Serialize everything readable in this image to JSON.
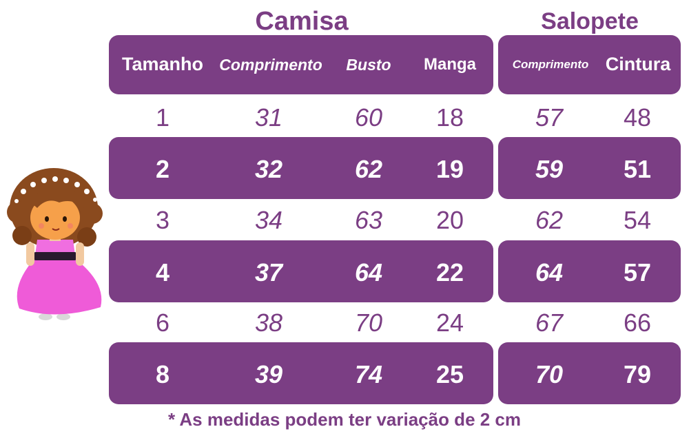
{
  "sections": {
    "camisa_title": "Camisa",
    "salopete_title": "Salopete"
  },
  "headers": {
    "tamanho": "Tamanho",
    "camisa_comprimento": "Comprimento",
    "busto": "Busto",
    "manga": "Manga",
    "salopete_comprimento": "Comprimento",
    "cintura": "Cintura"
  },
  "rows": [
    {
      "tamanho": "1",
      "comprimento": "31",
      "busto": "60",
      "manga": "18",
      "sal_comprimento": "57",
      "cintura": "48"
    },
    {
      "tamanho": "2",
      "comprimento": "32",
      "busto": "62",
      "manga": "19",
      "sal_comprimento": "59",
      "cintura": "51"
    },
    {
      "tamanho": "3",
      "comprimento": "34",
      "busto": "63",
      "manga": "20",
      "sal_comprimento": "62",
      "cintura": "54"
    },
    {
      "tamanho": "4",
      "comprimento": "37",
      "busto": "64",
      "manga": "22",
      "sal_comprimento": "64",
      "cintura": "57"
    },
    {
      "tamanho": "6",
      "comprimento": "38",
      "busto": "70",
      "manga": "24",
      "sal_comprimento": "67",
      "cintura": "66"
    },
    {
      "tamanho": "8",
      "comprimento": "39",
      "busto": "74",
      "manga": "25",
      "sal_comprimento": "70",
      "cintura": "79"
    }
  ],
  "footnote": "* As medidas podem ter variação de 2 cm",
  "colors": {
    "accent_purple": "#7b3e84",
    "dress_pink": "#ef5bd8",
    "background": "#ffffff"
  },
  "illustration": {
    "icon": "girl-in-pink-dress-icon"
  }
}
